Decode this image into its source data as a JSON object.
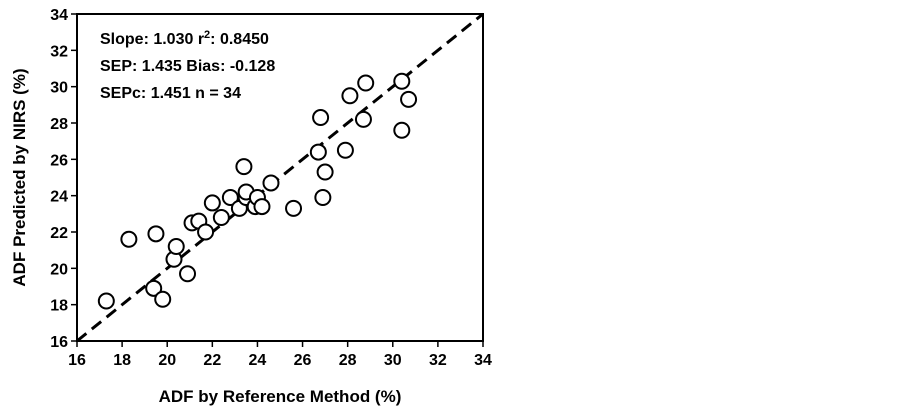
{
  "chart_data": {
    "type": "scatter",
    "title": "",
    "xlabel": "ADF by Reference Method  (%)",
    "ylabel": "ADF Predicted by NIRS  (%)",
    "xlim": [
      16,
      34
    ],
    "ylim": [
      16,
      34
    ],
    "xticks": [
      16,
      18,
      20,
      22,
      24,
      26,
      28,
      30,
      32,
      34
    ],
    "yticks": [
      16,
      18,
      20,
      22,
      24,
      26,
      28,
      30,
      32,
      34
    ],
    "grid": false,
    "legend": "none",
    "reference_line": {
      "style": "dashed",
      "from": [
        16,
        16
      ],
      "to": [
        34,
        34
      ]
    },
    "marker": "open-circle",
    "annotations": [
      {
        "text": "Slope: 1.030   r",
        "sup": "2",
        "after": ": 0.8450"
      },
      {
        "text": "SEP: 1.435  Bias: -0.128"
      },
      {
        "text": "SEPc: 1.451  n = 34"
      }
    ],
    "points": [
      {
        "x": 17.3,
        "y": 18.2
      },
      {
        "x": 18.3,
        "y": 21.6
      },
      {
        "x": 19.4,
        "y": 18.9
      },
      {
        "x": 19.5,
        "y": 21.9
      },
      {
        "x": 19.8,
        "y": 18.3
      },
      {
        "x": 20.3,
        "y": 20.5
      },
      {
        "x": 20.4,
        "y": 21.2
      },
      {
        "x": 20.9,
        "y": 19.7
      },
      {
        "x": 21.1,
        "y": 22.5
      },
      {
        "x": 21.4,
        "y": 22.6
      },
      {
        "x": 21.7,
        "y": 22.0
      },
      {
        "x": 22.0,
        "y": 23.6
      },
      {
        "x": 22.4,
        "y": 22.8
      },
      {
        "x": 22.8,
        "y": 23.9
      },
      {
        "x": 23.2,
        "y": 23.3
      },
      {
        "x": 23.4,
        "y": 25.6
      },
      {
        "x": 23.5,
        "y": 23.9
      },
      {
        "x": 23.5,
        "y": 24.2
      },
      {
        "x": 23.9,
        "y": 23.4
      },
      {
        "x": 24.0,
        "y": 23.9
      },
      {
        "x": 24.2,
        "y": 23.4
      },
      {
        "x": 24.6,
        "y": 24.7
      },
      {
        "x": 25.6,
        "y": 23.3
      },
      {
        "x": 26.7,
        "y": 26.4
      },
      {
        "x": 26.8,
        "y": 28.3
      },
      {
        "x": 26.9,
        "y": 23.9
      },
      {
        "x": 27.0,
        "y": 25.3
      },
      {
        "x": 27.9,
        "y": 26.5
      },
      {
        "x": 28.1,
        "y": 29.5
      },
      {
        "x": 28.7,
        "y": 28.2
      },
      {
        "x": 28.8,
        "y": 30.2
      },
      {
        "x": 30.4,
        "y": 30.3
      },
      {
        "x": 30.4,
        "y": 27.6
      },
      {
        "x": 30.7,
        "y": 29.3
      }
    ]
  }
}
